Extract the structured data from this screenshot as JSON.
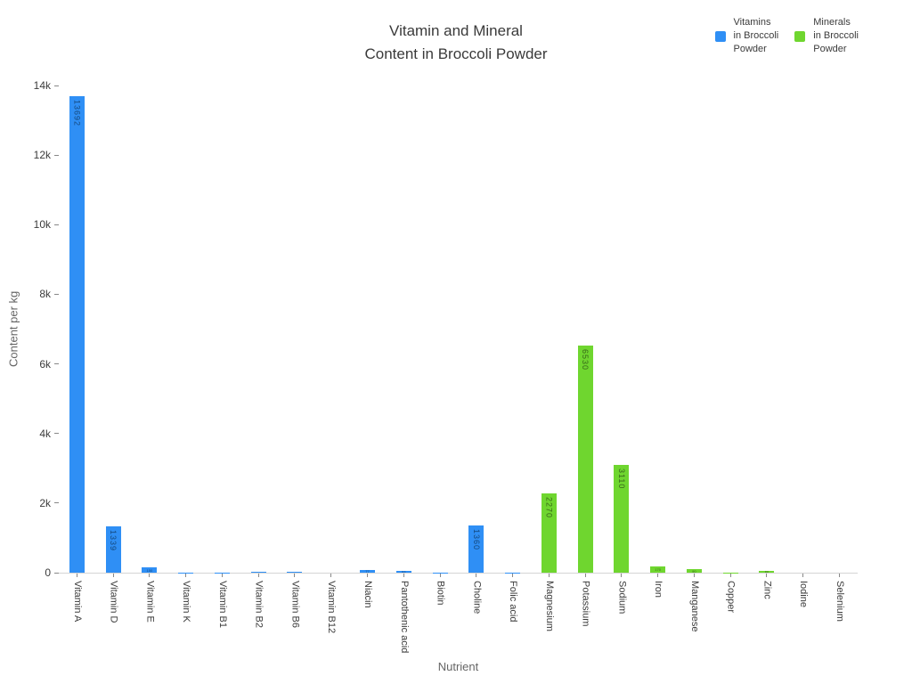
{
  "title": "Vitamin and Mineral\nContent in Broccoli Powder",
  "legend": [
    {
      "label": "Vitamins\nin Broccoli\nPowder",
      "color": "#2f8ff5"
    },
    {
      "label": "Minerals\nin Broccoli\nPowder",
      "color": "#6fd62f"
    }
  ],
  "chart_data": {
    "type": "bar",
    "title": "Vitamin and Mineral Content in Broccoli Powder",
    "xlabel": "Nutrient",
    "ylabel": "Content per kg",
    "ylim": [
      0,
      14000
    ],
    "ytick_labels": [
      "0",
      "2k",
      "4k",
      "6k",
      "8k",
      "10k",
      "12k",
      "14k"
    ],
    "grid": false,
    "legend_position": "top-right",
    "categories": [
      "Vitamin A",
      "Vitamin D",
      "Vitamin E",
      "Vitamin K",
      "Vitamin B1",
      "Vitamin B2",
      "Vitamin B6",
      "Vitamin B12",
      "Niacin",
      "Pantothenic acid",
      "Biotin",
      "Choline",
      "Folic acid",
      "Magnesium",
      "Potassium",
      "Sodium",
      "Iron",
      "Manganese",
      "Copper",
      "Zinc",
      "Iodine",
      "Selenium"
    ],
    "series": [
      {
        "name": "Vitamins in Broccoli Powder",
        "color": "#2f8ff5",
        "text_color": "#15497e",
        "values": [
          13692,
          1339,
          150,
          8,
          10,
          23,
          14,
          0,
          77,
          53,
          2,
          1360,
          7,
          null,
          null,
          null,
          null,
          null,
          null,
          null,
          null,
          null
        ]
      },
      {
        "name": "Minerals in Broccoli Powder",
        "color": "#6fd62f",
        "text_color": "#38691a",
        "values": [
          null,
          null,
          null,
          null,
          null,
          null,
          null,
          null,
          null,
          null,
          null,
          null,
          null,
          2270,
          6530,
          3110,
          170,
          90,
          5,
          60,
          1,
          1
        ]
      }
    ]
  }
}
